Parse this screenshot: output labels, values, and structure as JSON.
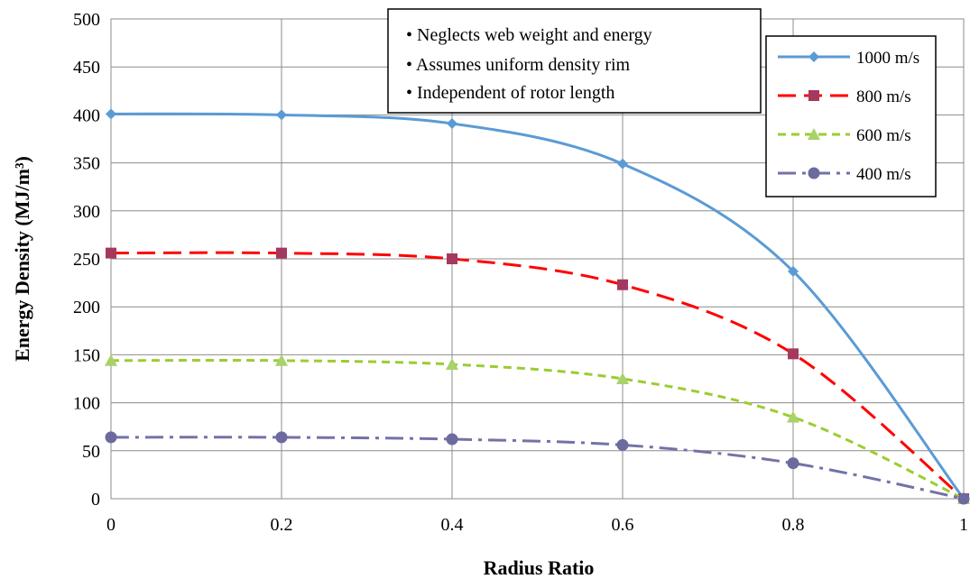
{
  "chart_data": {
    "type": "line",
    "xlabel": "Radius Ratio",
    "ylabel": "Energy Density (MJ/m³)",
    "xlim": [
      0,
      1
    ],
    "ylim": [
      0,
      500
    ],
    "xticks": [
      0,
      0.2,
      0.4,
      0.6,
      0.8,
      1
    ],
    "xtick_labels": [
      "0",
      "0.2",
      "0.4",
      "0.6",
      "0.8",
      "1"
    ],
    "yticks": [
      0,
      50,
      100,
      150,
      200,
      250,
      300,
      350,
      400,
      450,
      500
    ],
    "ytick_labels": [
      "0",
      "50",
      "100",
      "150",
      "200",
      "250",
      "300",
      "350",
      "400",
      "450",
      "500"
    ],
    "grid": true,
    "legend_position": "right",
    "x": [
      0,
      0.2,
      0.4,
      0.6,
      0.8,
      1
    ],
    "series": [
      {
        "name": "1000 m/s",
        "values": [
          401,
          400,
          391,
          349,
          237,
          0
        ],
        "color": "#5B9BD5",
        "marker": "diamond",
        "dash": "solid"
      },
      {
        "name": "800 m/s",
        "values": [
          256,
          256,
          250,
          223,
          151,
          0
        ],
        "color": "#FF0000",
        "marker": "square",
        "markercolor": "#A5385F",
        "dash": "dashed"
      },
      {
        "name": "600 m/s",
        "values": [
          144,
          144,
          140,
          125,
          85,
          0
        ],
        "color": "#9ACD32",
        "marker": "triangle",
        "markercolor": "#A8D26A",
        "dash": "short-dashed"
      },
      {
        "name": "400 m/s",
        "values": [
          64,
          64,
          62,
          56,
          37,
          0
        ],
        "color": "#7372A7",
        "marker": "circle",
        "markercolor": "#6C6A9E",
        "dash": "dash-dot"
      }
    ],
    "annotations": [
      "• Neglects web weight and energy",
      "• Assumes uniform density rim",
      "• Independent of rotor length"
    ]
  }
}
